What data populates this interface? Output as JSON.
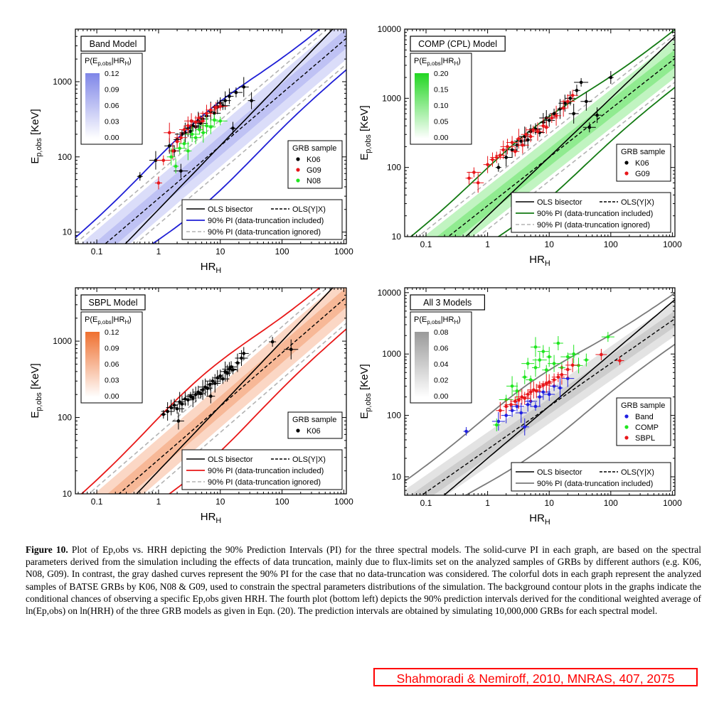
{
  "caption": {
    "label": "Figure 10.",
    "text": "Plot of Ep,obs vs. HRH depicting the 90% Prediction Intervals (PI) for the three spectral models. The solid-curve PI in each graph, are based on the spectral parameters derived from the simulation including the effects of data truncation, mainly due to flux-limits set on the analyzed samples of GRBs by different authors (e.g. K06, N08, G09). In contrast, the gray dashed curves represent the 90% PI for the case that no data-truncation was considered. The colorful dots in each graph represent the analyzed samples of BATSE GRBs by K06, N08 & G09, used to constrain the spectral parameters distributions of the simulation. The background contour plots in the graphs indicate the conditional chances of observing a specific Ep,obs given HRH. The fourth plot (bottom left) depicts the 90% prediction intervals derived for the conditional weighted average of ln(Ep,obs) on ln(HRH) of the three GRB models as given in Eqn. (20). The prediction intervals are obtained by simulating 10,000,000 GRBs for each spectral model."
  },
  "citation": "Shahmoradi & Nemiroff, 2010, MNRAS, 407, 2075",
  "chart_data": [
    {
      "type": "scatter",
      "title": "Band Model",
      "xlabel": "HR_H",
      "ylabel": "E_p,obs [KeV]",
      "x_scale": "log",
      "y_scale": "log",
      "xlim": [
        0.045,
        1100
      ],
      "ylim": [
        7,
        5000
      ],
      "x_ticks": [
        "0.1",
        "1",
        "10",
        "100",
        "1000"
      ],
      "y_ticks": [
        "10",
        "100",
        "1000"
      ],
      "colorbar": {
        "label": "P(E_p,obs|HR_H)",
        "ticks": [
          "0.12",
          "0.09",
          "0.06",
          "0.03",
          "0.00"
        ],
        "color": "#7f86e8"
      },
      "pi_color": "#1f1fd6",
      "legend_title": "GRB sample",
      "legend": [
        "OLS bisector",
        "OLS(Y|X)",
        "90% PI (data-truncation included)",
        "90% PI (data-truncation ignored)"
      ],
      "series": [
        {
          "name": "K06",
          "color": "#000000",
          "points": [
            [
              0.5,
              55
            ],
            [
              0.9,
              90
            ],
            [
              1.5,
              140
            ],
            [
              2,
              170
            ],
            [
              2.4,
              200
            ],
            [
              2.7,
              210
            ],
            [
              3,
              240
            ],
            [
              3.3,
              220
            ],
            [
              3.6,
              260
            ],
            [
              4,
              250
            ],
            [
              4.4,
              300
            ],
            [
              4.8,
              280
            ],
            [
              5.2,
              320
            ],
            [
              6,
              350
            ],
            [
              7,
              400
            ],
            [
              8,
              380
            ],
            [
              9,
              460
            ],
            [
              10,
              520
            ],
            [
              11,
              480
            ],
            [
              12,
              560
            ],
            [
              14,
              640
            ],
            [
              16,
              240
            ],
            [
              18,
              720
            ],
            [
              24,
              850
            ],
            [
              32,
              560
            ],
            [
              2.3,
              65
            ],
            [
              1.8,
              120
            ]
          ]
        },
        {
          "name": "G09",
          "color": "#e8161a",
          "points": [
            [
              1,
              45
            ],
            [
              1.2,
              90
            ],
            [
              1.5,
              210
            ],
            [
              1.7,
              120
            ],
            [
              2,
              160
            ],
            [
              2.3,
              180
            ],
            [
              2.6,
              230
            ],
            [
              3,
              260
            ],
            [
              3.4,
              300
            ],
            [
              4,
              290
            ],
            [
              4.5,
              330
            ],
            [
              5.2,
              300
            ],
            [
              6,
              380
            ],
            [
              7,
              420
            ],
            [
              8.5,
              450
            ],
            [
              10,
              470
            ]
          ]
        },
        {
          "name": "N08",
          "color": "#1fe61f",
          "points": [
            [
              1.6,
              100
            ],
            [
              1.9,
              75
            ],
            [
              2.2,
              130
            ],
            [
              2.6,
              150
            ],
            [
              3,
              120
            ],
            [
              3.5,
              200
            ],
            [
              4,
              180
            ],
            [
              4.6,
              230
            ],
            [
              5.3,
              210
            ],
            [
              6,
              260
            ],
            [
              7,
              250
            ],
            [
              8,
              310
            ],
            [
              10,
              300
            ]
          ]
        }
      ]
    },
    {
      "type": "scatter",
      "title": "COMP (CPL) Model",
      "xlabel": "HR_H",
      "ylabel": "E_p,obs [KeV]",
      "x_scale": "log",
      "y_scale": "log",
      "xlim": [
        0.045,
        1100
      ],
      "ylim": [
        10,
        10000
      ],
      "x_ticks": [
        "0.1",
        "1",
        "10",
        "100",
        "1000"
      ],
      "y_ticks": [
        "10",
        "100",
        "1000",
        "10000"
      ],
      "colorbar": {
        "label": "P(E_p,obs|HR_H)",
        "ticks": [
          "0.20",
          "0.15",
          "0.10",
          "0.05",
          "0.00"
        ],
        "color": "#22d622"
      },
      "pi_color": "#137a13",
      "legend_title": "GRB sample",
      "legend": [
        "OLS bisector",
        "OLS(Y|X)",
        "90% PI (data-truncation included)",
        "90% PI (data-truncation ignored)"
      ],
      "series": [
        {
          "name": "K06",
          "color": "#000000",
          "points": [
            [
              1.5,
              100
            ],
            [
              2,
              140
            ],
            [
              2.5,
              180
            ],
            [
              3,
              210
            ],
            [
              3.5,
              240
            ],
            [
              4,
              280
            ],
            [
              4.5,
              250
            ],
            [
              5,
              330
            ],
            [
              6,
              360
            ],
            [
              7,
              320
            ],
            [
              8,
              450
            ],
            [
              9,
              520
            ],
            [
              10,
              480
            ],
            [
              12,
              600
            ],
            [
              15,
              700
            ],
            [
              18,
              850
            ],
            [
              22,
              1000
            ],
            [
              28,
              1300
            ],
            [
              33,
              1700
            ],
            [
              40,
              900
            ],
            [
              60,
              570
            ],
            [
              100,
              2000
            ],
            [
              45,
              380
            ],
            [
              25,
              600
            ]
          ]
        },
        {
          "name": "G09",
          "color": "#e8161a",
          "points": [
            [
              0.5,
              70
            ],
            [
              0.6,
              85
            ],
            [
              0.7,
              60
            ],
            [
              1,
              110
            ],
            [
              1.2,
              130
            ],
            [
              1.4,
              140
            ],
            [
              1.6,
              150
            ],
            [
              1.8,
              180
            ],
            [
              2.1,
              200
            ],
            [
              2.5,
              230
            ],
            [
              2.8,
              170
            ],
            [
              3.2,
              260
            ],
            [
              3.7,
              210
            ],
            [
              4.2,
              300
            ],
            [
              5,
              280
            ],
            [
              5.5,
              350
            ],
            [
              6.5,
              330
            ],
            [
              8,
              400
            ],
            [
              9,
              380
            ],
            [
              11,
              520
            ],
            [
              13,
              560
            ],
            [
              17,
              720
            ],
            [
              20,
              900
            ],
            [
              24,
              1100
            ]
          ]
        }
      ]
    },
    {
      "type": "scatter",
      "title": "SBPL Model",
      "xlabel": "HR_H",
      "ylabel": "E_p,obs [KeV]",
      "x_scale": "log",
      "y_scale": "log",
      "xlim": [
        0.045,
        1100
      ],
      "ylim": [
        10,
        5000
      ],
      "x_ticks": [
        "0.1",
        "1",
        "10",
        "100",
        "1000"
      ],
      "y_ticks": [
        "10",
        "100",
        "1000"
      ],
      "colorbar": {
        "label": "P(E_p,obs|HR_H)",
        "ticks": [
          "0.12",
          "0.09",
          "0.06",
          "0.03",
          "0.00"
        ],
        "color": "#ef7030"
      },
      "pi_color": "#e81818",
      "legend_title": "GRB sample",
      "legend": [
        "OLS bisector",
        "OLS(Y|X)",
        "90% PI (data-truncation included)",
        "90% PI (data-truncation ignored)"
      ],
      "series": [
        {
          "name": "K06",
          "color": "#000000",
          "points": [
            [
              1.2,
              110
            ],
            [
              1.4,
              120
            ],
            [
              1.6,
              135
            ],
            [
              1.8,
              145
            ],
            [
              2,
              130
            ],
            [
              2.2,
              160
            ],
            [
              2.4,
              150
            ],
            [
              2.7,
              175
            ],
            [
              3,
              170
            ],
            [
              3.3,
              190
            ],
            [
              3.6,
              180
            ],
            [
              4,
              200
            ],
            [
              4.4,
              215
            ],
            [
              4.8,
              205
            ],
            [
              5.2,
              230
            ],
            [
              5.7,
              250
            ],
            [
              6.2,
              240
            ],
            [
              6.8,
              270
            ],
            [
              7.5,
              300
            ],
            [
              8.2,
              280
            ],
            [
              9,
              330
            ],
            [
              10,
              350
            ],
            [
              11,
              320
            ],
            [
              12,
              400
            ],
            [
              13,
              380
            ],
            [
              14,
              430
            ],
            [
              15,
              460
            ],
            [
              16,
              420
            ],
            [
              19,
              520
            ],
            [
              22,
              600
            ],
            [
              24,
              690
            ],
            [
              70,
              980
            ],
            [
              140,
              780
            ],
            [
              2.1,
              90
            ],
            [
              7,
              190
            ]
          ]
        }
      ]
    },
    {
      "type": "scatter",
      "title": "All 3 Models",
      "xlabel": "HR_H",
      "ylabel": "E_p,obs [KeV]",
      "x_scale": "log",
      "y_scale": "log",
      "xlim": [
        0.045,
        1100
      ],
      "ylim": [
        5,
        12000
      ],
      "x_ticks": [
        "0.1",
        "1",
        "10",
        "100",
        "1000"
      ],
      "y_ticks": [
        "10",
        "100",
        "1000",
        "10000"
      ],
      "colorbar": {
        "label": "P(E_p,obs|HR_H)",
        "ticks": [
          "0.08",
          "0.06",
          "0.04",
          "0.02",
          "0.00"
        ],
        "color": "#9a9a9a"
      },
      "pi_color": "#7a7a7a",
      "legend_title": "GRB sample",
      "legend": [
        "OLS bisector",
        "OLS(Y|X)",
        "90% PI (data-truncation included)"
      ],
      "series": [
        {
          "name": "Band",
          "color": "#1f1fe0",
          "points": [
            [
              0.45,
              55
            ],
            [
              1.5,
              80
            ],
            [
              2,
              100
            ],
            [
              2.5,
              120
            ],
            [
              3,
              140
            ],
            [
              3.5,
              110
            ],
            [
              4,
              65
            ],
            [
              4.5,
              150
            ],
            [
              5,
              170
            ],
            [
              6,
              140
            ],
            [
              7,
              200
            ],
            [
              8,
              240
            ],
            [
              10,
              220
            ],
            [
              12,
              300
            ],
            [
              15,
              280
            ],
            [
              20,
              400
            ]
          ]
        },
        {
          "name": "COMP",
          "color": "#1fe61f",
          "points": [
            [
              1.4,
              70
            ],
            [
              2,
              180
            ],
            [
              2.5,
              300
            ],
            [
              3,
              250
            ],
            [
              4,
              420
            ],
            [
              4.5,
              700
            ],
            [
              5,
              380
            ],
            [
              6,
              600
            ],
            [
              7,
              800
            ],
            [
              8,
              1100
            ],
            [
              9,
              550
            ],
            [
              10,
              900
            ],
            [
              12,
              700
            ],
            [
              14,
              1500
            ],
            [
              16,
              600
            ],
            [
              20,
              900
            ],
            [
              25,
              1000
            ],
            [
              30,
              650
            ],
            [
              40,
              800
            ],
            [
              90,
              1900
            ],
            [
              6,
              1300
            ]
          ]
        },
        {
          "name": "SBPL",
          "color": "#e8161a",
          "points": [
            [
              1.6,
              120
            ],
            [
              2,
              140
            ],
            [
              2.4,
              150
            ],
            [
              2.8,
              170
            ],
            [
              3.2,
              180
            ],
            [
              3.6,
              200
            ],
            [
              4,
              190
            ],
            [
              4.5,
              220
            ],
            [
              5,
              240
            ],
            [
              5.6,
              260
            ],
            [
              6.2,
              250
            ],
            [
              7,
              290
            ],
            [
              8,
              310
            ],
            [
              9,
              330
            ],
            [
              10,
              350
            ],
            [
              12,
              380
            ],
            [
              14,
              420
            ],
            [
              16,
              460
            ],
            [
              20,
              560
            ],
            [
              24,
              660
            ],
            [
              70,
              980
            ],
            [
              140,
              780
            ]
          ]
        }
      ]
    }
  ]
}
